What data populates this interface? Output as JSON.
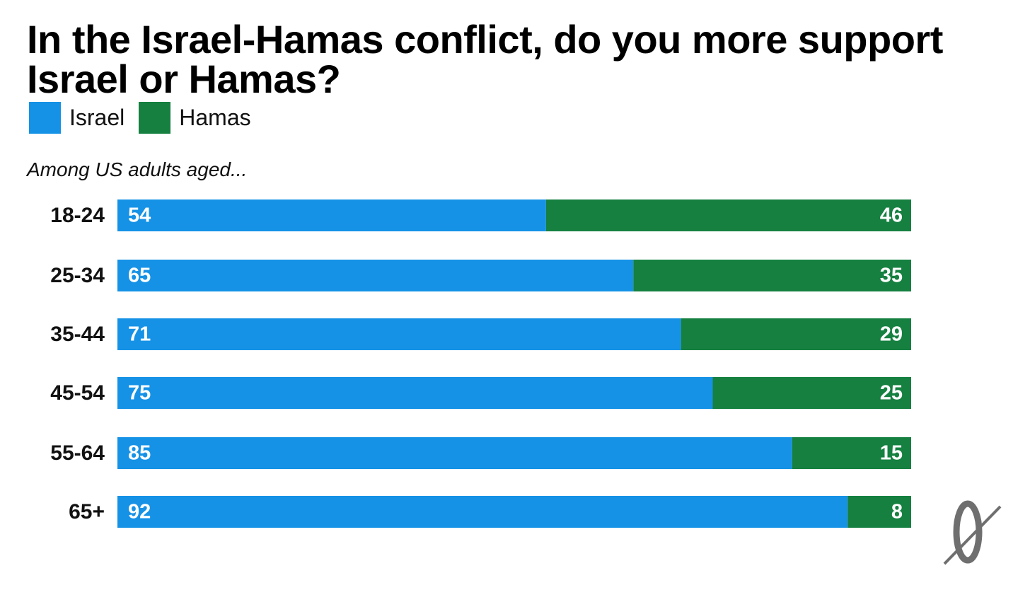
{
  "title": "In the Israel-Hamas conflict, do you more support Israel or Hamas?",
  "subtitle": "Among US adults aged...",
  "colors": {
    "israel": "#1592e6",
    "hamas": "#158040",
    "label_text": "#ffffff",
    "category_text": "#111111"
  },
  "logo_icon": "slashed-zero-logo",
  "chart_data": {
    "type": "bar",
    "orientation": "horizontal",
    "stacked": true,
    "categories": [
      "18-24",
      "25-34",
      "35-44",
      "45-54",
      "55-64",
      "65+"
    ],
    "series": [
      {
        "name": "Israel",
        "values": [
          54,
          65,
          71,
          75,
          85,
          92
        ]
      },
      {
        "name": "Hamas",
        "values": [
          46,
          35,
          29,
          25,
          15,
          8
        ]
      }
    ],
    "xlim": [
      0,
      100
    ],
    "grid": false,
    "legend_position": "top-left",
    "xlabel": "",
    "ylabel": ""
  }
}
